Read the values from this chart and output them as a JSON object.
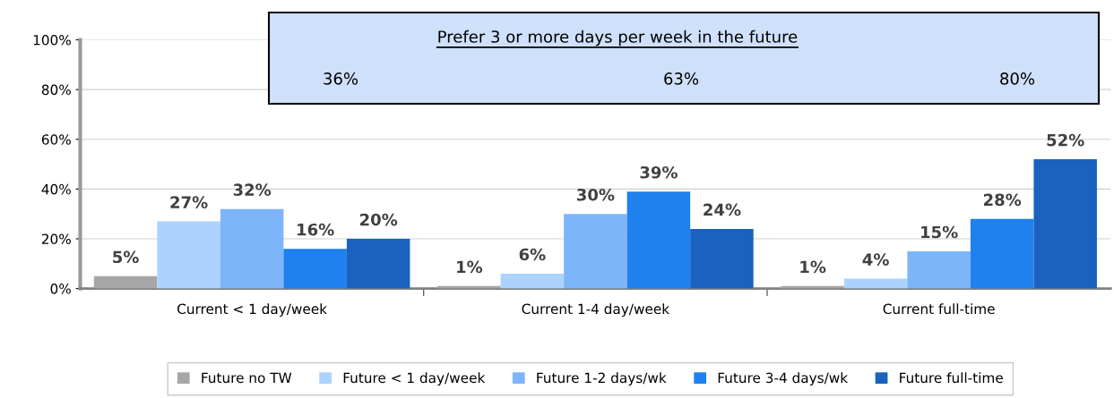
{
  "chart_data": {
    "type": "bar",
    "categories": [
      "Current < 1 day/week",
      "Current 1-4 day/week",
      "Current full-time"
    ],
    "series": [
      {
        "name": "Future no TW",
        "color": "#a6a6a6",
        "values": [
          5,
          1,
          1
        ],
        "value_labels": [
          "5%",
          "1%",
          "1%"
        ]
      },
      {
        "name": "Future < 1 day/week",
        "color": "#acd3fd",
        "values": [
          27,
          6,
          4
        ],
        "value_labels": [
          "27%",
          "6%",
          "4%"
        ]
      },
      {
        "name": "Future 1-2 days/wk",
        "color": "#7db5fa",
        "values": [
          32,
          30,
          15
        ],
        "value_labels": [
          "32%",
          "30%",
          "15%"
        ]
      },
      {
        "name": "Future 3-4 days/wk",
        "color": "#1f80f0",
        "values": [
          16,
          39,
          28
        ],
        "value_labels": [
          "16%",
          "39%",
          "28%"
        ]
      },
      {
        "name": "Future full-time",
        "color": "#1a62bd",
        "values": [
          20,
          24,
          52
        ],
        "value_labels": [
          "20%",
          "24%",
          "52%"
        ]
      }
    ],
    "ylim": [
      0,
      100
    ],
    "yticks": [
      {
        "value": 0,
        "label": "0%"
      },
      {
        "value": 20,
        "label": "20%"
      },
      {
        "value": 40,
        "label": "40%"
      },
      {
        "value": 60,
        "label": "60%"
      },
      {
        "value": 80,
        "label": "80%"
      },
      {
        "value": 100,
        "label": "100%"
      }
    ],
    "annotations": [
      "Prefer 3 or more days per week in the future",
      "36%",
      "63%",
      "80%"
    ],
    "grid": "y",
    "legend": "bottom"
  }
}
